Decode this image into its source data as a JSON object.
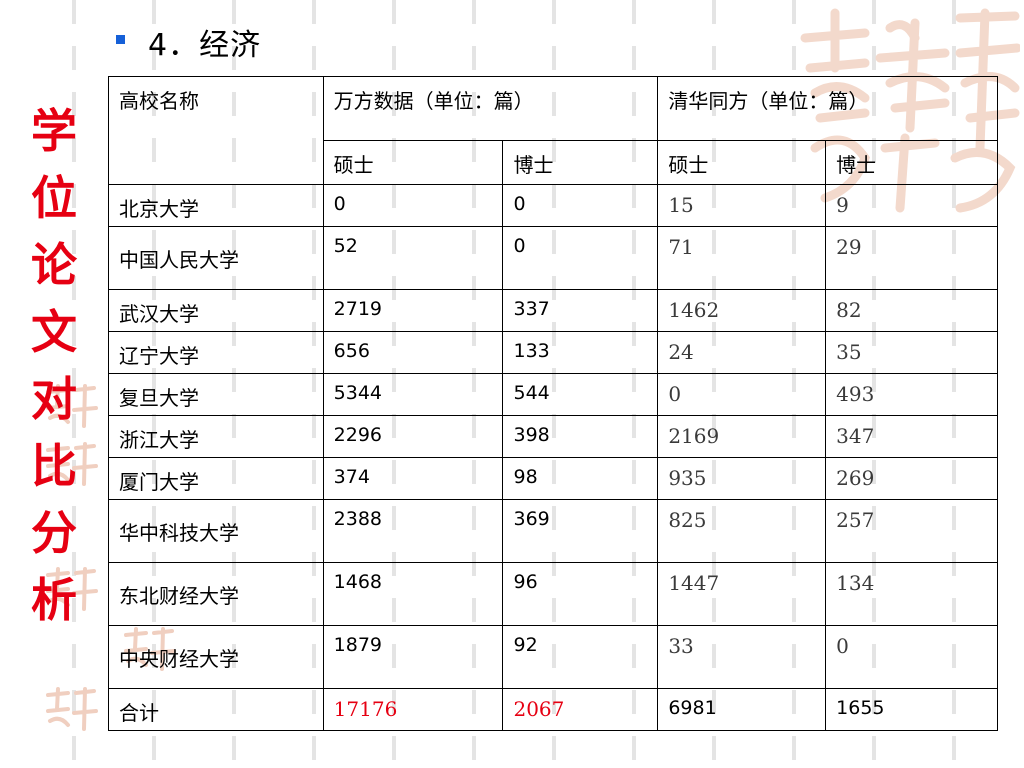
{
  "slide": {
    "heading": "4．经济",
    "side_title_chars": [
      "学",
      "位",
      "论",
      "文",
      "对",
      "比",
      "分",
      "析"
    ]
  },
  "colors": {
    "accent_red": "#e60012",
    "bullet_blue": "#1560d8",
    "watermark": "#f3d9cc"
  },
  "table": {
    "header": {
      "school_col": "高校名称",
      "wanfang_group": "万方数据（单位：篇）",
      "tsinghua_group": "清华同方（单位：篇）",
      "master": "硕士",
      "doctor": "博士"
    },
    "rows": [
      {
        "school": "北京大学",
        "wf_master": "0",
        "wf_doctor": "0",
        "th_master": "15",
        "th_doctor": "9"
      },
      {
        "school": "中国人民大学",
        "wf_master": "52",
        "wf_doctor": "0",
        "th_master": "71",
        "th_doctor": "29"
      },
      {
        "school": "武汉大学",
        "wf_master": "2719",
        "wf_doctor": "337",
        "th_master": "1462",
        "th_doctor": "82"
      },
      {
        "school": "辽宁大学",
        "wf_master": "656",
        "wf_doctor": "133",
        "th_master": "24",
        "th_doctor": "35"
      },
      {
        "school": "复旦大学",
        "wf_master": "5344",
        "wf_doctor": "544",
        "th_master": "0",
        "th_doctor": "493"
      },
      {
        "school": "浙江大学",
        "wf_master": "2296",
        "wf_doctor": "398",
        "th_master": "2169",
        "th_doctor": "347"
      },
      {
        "school": "厦门大学",
        "wf_master": "374",
        "wf_doctor": "98",
        "th_master": "935",
        "th_doctor": "269"
      },
      {
        "school": "华中科技大学",
        "wf_master": "2388",
        "wf_doctor": "369",
        "th_master": "825",
        "th_doctor": "257"
      },
      {
        "school": "东北财经大学",
        "wf_master": "1468",
        "wf_doctor": "96",
        "th_master": "1447",
        "th_doctor": "134"
      },
      {
        "school": "中央财经大学",
        "wf_master": "1879",
        "wf_doctor": "92",
        "th_master": "33",
        "th_doctor": "0"
      }
    ],
    "total": {
      "label": "合计",
      "wf_master": "17176",
      "wf_doctor": "2067",
      "th_master": "6981",
      "th_doctor": "1655"
    }
  }
}
